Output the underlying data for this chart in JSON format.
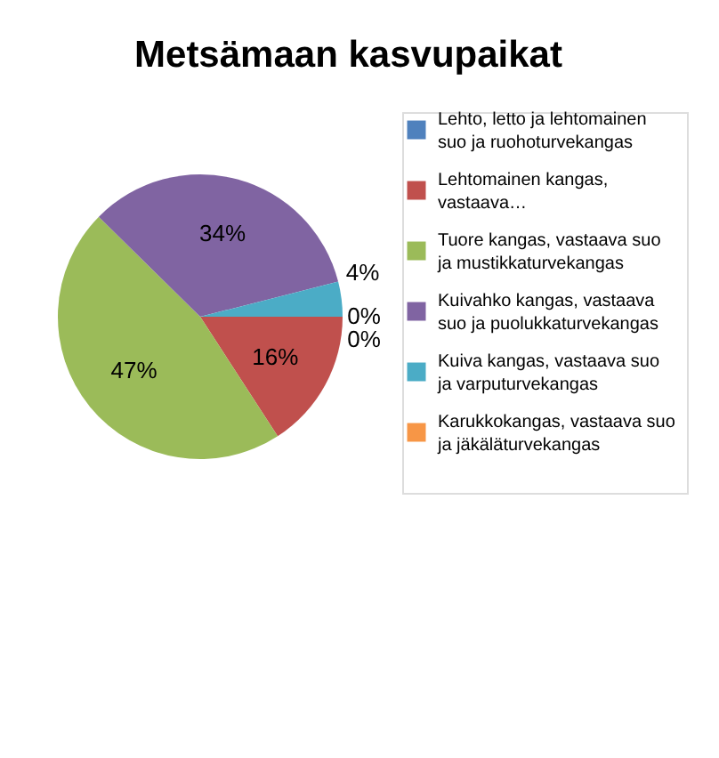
{
  "chart_data": {
    "type": "pie",
    "title": "Metsämaan kasvupaikat",
    "categories": [
      "Lehto, letto ja lehtomainen suo ja ruohoturvekangas",
      "Lehtomainen kangas, vastaava…",
      "Tuore kangas, vastaava suo ja mustikkaturvekangas",
      "Kuivahko kangas, vastaava suo ja puolukkaturvekangas",
      "Kuiva kangas, vastaava suo ja varputurvekangas",
      "Karukkokangas, vastaava suo ja jäkäläturvekangas"
    ],
    "values": [
      0,
      16,
      47,
      34,
      4,
      0
    ],
    "value_labels": [
      "0%",
      "16%",
      "47%",
      "34%",
      "4%",
      "0%"
    ],
    "colors": [
      "#4f81bd",
      "#c0504d",
      "#9bbb59",
      "#8064a2",
      "#4bacc6",
      "#f79646"
    ],
    "legend": "right"
  }
}
